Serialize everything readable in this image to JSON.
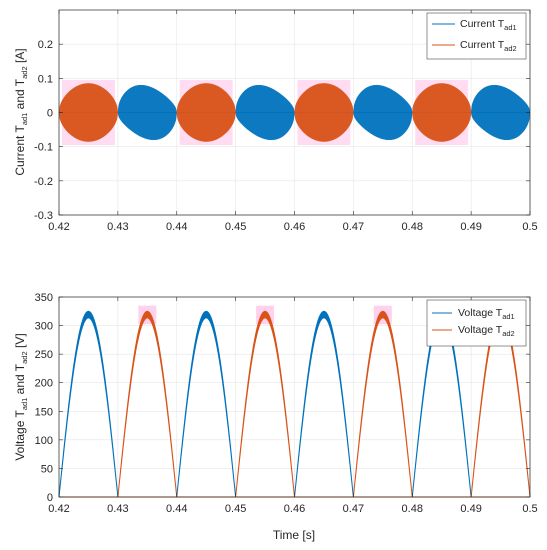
{
  "colors": {
    "series1": "#0072bd",
    "series2": "#d95319",
    "grid": "#e6e6e6",
    "axis": "#262626",
    "glow": "#ff9ad6"
  },
  "chart_data": [
    {
      "type": "line",
      "ylabel": "Current T_ad1 and T_ad2 [A]",
      "ylabel_parts": {
        "a": "Current T",
        "b": "ad1",
        "c": " and T",
        "d": "ad2",
        "e": " [A]"
      },
      "xlim": [
        0.42,
        0.5
      ],
      "ylim": [
        -0.3,
        0.3
      ],
      "grid": true,
      "legend_position": "top-right",
      "x_ticks": [
        "0.42",
        "0.43",
        "0.44",
        "0.45",
        "0.46",
        "0.47",
        "0.48",
        "0.49",
        "0.5"
      ],
      "y_ticks": [
        "0.2",
        "0.1",
        "0",
        "-0.1",
        "-0.2",
        "-0.3"
      ],
      "y_tick_values": [
        0.2,
        0.1,
        0,
        -0.1,
        -0.2,
        -0.3
      ],
      "series": [
        {
          "name": "Current T_ad1",
          "label_main": "Current T",
          "label_sub": "ad1",
          "color_key": "series1",
          "description_segments": [
            [
              0.43,
              0.44
            ],
            [
              0.45,
              0.46
            ],
            [
              0.47,
              0.48
            ],
            [
              0.49,
              0.5
            ]
          ],
          "max_peak": 0.1,
          "min_peak": -0.1
        },
        {
          "name": "Current T_ad2",
          "label_main": "Current T",
          "label_sub": "ad2",
          "color_key": "series2",
          "description_segments": [
            [
              0.42,
              0.43
            ],
            [
              0.44,
              0.45
            ],
            [
              0.46,
              0.47
            ],
            [
              0.48,
              0.49
            ]
          ],
          "max_peak": 0.085,
          "min_peak": -0.085
        }
      ]
    },
    {
      "type": "line",
      "xlabel": "Time [s]",
      "ylabel": "Voltage T_ad1 and T_ad2 [V]",
      "ylabel_parts": {
        "a": "Voltage T",
        "b": "ad1",
        "c": " and T",
        "d": "ad2",
        "e": " [V]"
      },
      "xlim": [
        0.42,
        0.5
      ],
      "ylim": [
        0,
        350
      ],
      "grid": true,
      "legend_position": "top-right",
      "x_ticks": [
        "0.42",
        "0.43",
        "0.44",
        "0.45",
        "0.46",
        "0.47",
        "0.48",
        "0.49",
        "0.5"
      ],
      "y_ticks": [
        "350",
        "300",
        "250",
        "200",
        "150",
        "100",
        "50",
        "0"
      ],
      "y_tick_values": [
        350,
        300,
        250,
        200,
        150,
        100,
        50,
        0
      ],
      "series": [
        {
          "name": "Voltage T_ad1",
          "label_main": "Voltage T",
          "label_sub": "ad1",
          "color_key": "series1",
          "active_segments": [
            [
              0.42,
              0.43
            ],
            [
              0.44,
              0.45
            ],
            [
              0.46,
              0.47
            ],
            [
              0.48,
              0.49
            ]
          ],
          "peak": 325
        },
        {
          "name": "Voltage T_ad2",
          "label_main": "Voltage T",
          "label_sub": "ad2",
          "color_key": "series2",
          "active_segments": [
            [
              0.43,
              0.44
            ],
            [
              0.45,
              0.46
            ],
            [
              0.47,
              0.48
            ],
            [
              0.49,
              0.5
            ]
          ],
          "peak": 325
        }
      ]
    }
  ]
}
